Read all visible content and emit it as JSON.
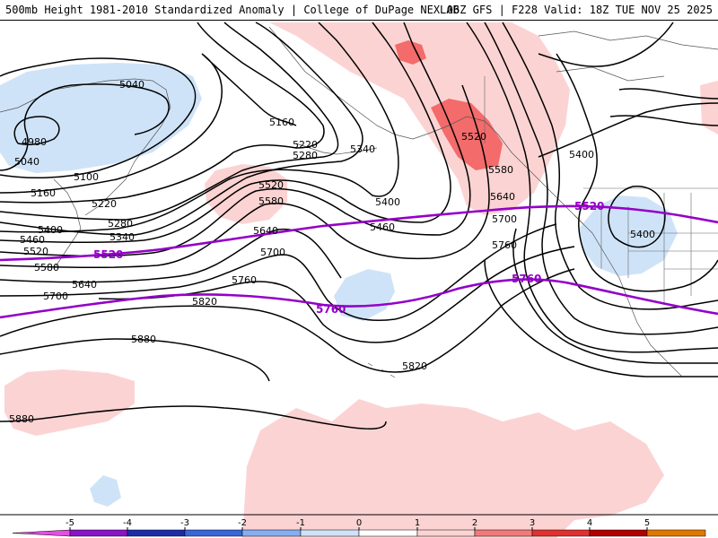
{
  "header": {
    "title": "500mb Height 1981-2010 Standardized Anomaly | College of DuPage NEXLAB",
    "run_info": "06Z GFS | F228 Valid: 18Z TUE NOV 25 2025"
  },
  "colors": {
    "pos1": "#fcd3d3",
    "pos2": "#f36b6b",
    "neg1": "#cfe3f8",
    "contour": "#000000",
    "climatology": "#9400c8"
  },
  "contour_labels": [
    {
      "text": "5040"
    },
    {
      "text": "4980"
    },
    {
      "text": "5040"
    },
    {
      "text": "5100"
    },
    {
      "text": "5160"
    },
    {
      "text": "5160"
    },
    {
      "text": "5220"
    },
    {
      "text": "5220"
    },
    {
      "text": "5280"
    },
    {
      "text": "5280"
    },
    {
      "text": "5340"
    },
    {
      "text": "5340"
    },
    {
      "text": "5400"
    },
    {
      "text": "5460"
    },
    {
      "text": "5520"
    },
    {
      "text": "5580"
    },
    {
      "text": "5640"
    },
    {
      "text": "5700"
    },
    {
      "text": "5520"
    },
    {
      "text": "5580"
    },
    {
      "text": "5640"
    },
    {
      "text": "5700"
    },
    {
      "text": "5760"
    },
    {
      "text": "5820"
    },
    {
      "text": "5880"
    },
    {
      "text": "5880"
    },
    {
      "text": "5400"
    },
    {
      "text": "5460"
    },
    {
      "text": "5520"
    },
    {
      "text": "5580"
    },
    {
      "text": "5640"
    },
    {
      "text": "5700"
    },
    {
      "text": "5760"
    },
    {
      "text": "5820"
    },
    {
      "text": "5400"
    },
    {
      "text": "5400"
    }
  ],
  "climatology_labels": [
    {
      "text": "5520"
    },
    {
      "text": "5520"
    },
    {
      "text": "5760"
    },
    {
      "text": "5760"
    }
  ],
  "colorbar": {
    "ticks": [
      "-5",
      "-4",
      "-3",
      "-2",
      "-1",
      "0",
      "1",
      "2",
      "3",
      "4",
      "5"
    ],
    "colors": [
      "#e34fe3",
      "#8a14c8",
      "#1c2ca8",
      "#3a66d8",
      "#85aef0",
      "#cfe3f8",
      "#ffffff",
      "#fcd3d3",
      "#f07a7a",
      "#e03030",
      "#b00000",
      "#e07800",
      "#f5b800"
    ]
  }
}
